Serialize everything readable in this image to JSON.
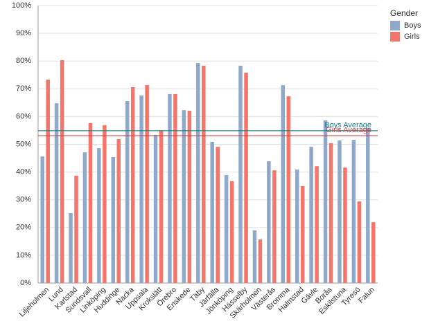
{
  "chart_data": {
    "type": "bar",
    "categories": [
      "Liljeholmen",
      "Lund",
      "Karlstad",
      "Sundsvall",
      "Linköping",
      "Huddinge",
      "Nacka",
      "Uppsala",
      "Krokslätt",
      "Örebro",
      "Enskede",
      "Täby",
      "Järfälla",
      "Jönköping",
      "Hässelby",
      "Skärholmen",
      "Västerås",
      "Bromma",
      "Halmstad",
      "Gävle",
      "Borås",
      "Eskilstuna",
      "Tyresö",
      "Falun"
    ],
    "series": [
      {
        "name": "Boys",
        "color": "#8fa9cb",
        "values": [
          45.6,
          64.8,
          25.2,
          47.1,
          48.6,
          45.4,
          65.6,
          67.6,
          53.4,
          68.1,
          62.3,
          79.3,
          50.9,
          38.9,
          78.3,
          19.0,
          43.9,
          71.3,
          40.9,
          49.1,
          58.6,
          51.4,
          51.6,
          55.9
        ]
      },
      {
        "name": "Girls",
        "color": "#f4756a",
        "values": [
          73.3,
          80.3,
          38.7,
          57.6,
          56.9,
          51.9,
          70.6,
          71.3,
          55.1,
          68.1,
          62.1,
          78.3,
          49.1,
          36.7,
          75.8,
          15.7,
          40.6,
          67.3,
          34.9,
          42.1,
          50.4,
          41.6,
          29.4,
          21.9
        ]
      }
    ],
    "reference_lines": [
      {
        "label": "Boys Average",
        "value": 54.9,
        "color": "#1f8088"
      },
      {
        "label": "Girls Average",
        "value": 53.1,
        "color": "#c4474a"
      }
    ],
    "legend_title": "Gender",
    "ylim": [
      0,
      100
    ],
    "yticks": [
      {
        "value": 0,
        "label": "0%"
      },
      {
        "value": 10,
        "label": "10%"
      },
      {
        "value": 20,
        "label": "20%"
      },
      {
        "value": 30,
        "label": "30%"
      },
      {
        "value": 40,
        "label": "40%"
      },
      {
        "value": 50,
        "label": "50%"
      },
      {
        "value": 60,
        "label": "60%"
      },
      {
        "value": 70,
        "label": "70%"
      },
      {
        "value": 80,
        "label": "80%"
      },
      {
        "value": 90,
        "label": "90%"
      },
      {
        "value": 100,
        "label": "100%"
      }
    ],
    "grid": true
  }
}
